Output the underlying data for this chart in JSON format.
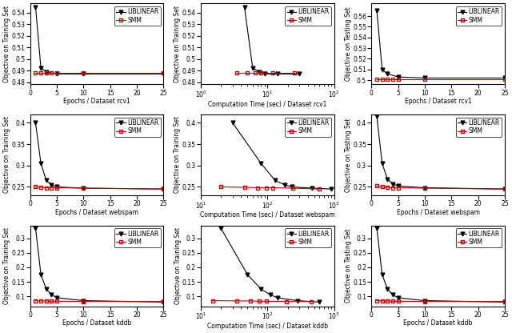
{
  "datasets": [
    "rcv1",
    "webspam",
    "kddb"
  ],
  "rcv1": {
    "liblinear_epochs": [
      1,
      2,
      3,
      5,
      10,
      25
    ],
    "liblinear_train_vals": [
      0.545,
      0.492,
      0.489,
      0.487,
      0.487,
      0.487
    ],
    "smm_epochs": [
      1,
      2,
      3,
      4,
      5,
      10,
      25
    ],
    "smm_train_vals": [
      0.488,
      0.488,
      0.488,
      0.488,
      0.488,
      0.488,
      0.488
    ],
    "liblinear_times": [
      4.5,
      6.0,
      7.5,
      9.0,
      14.0,
      30.0
    ],
    "liblinear_time_vals": [
      0.545,
      0.492,
      0.489,
      0.487,
      0.487,
      0.487
    ],
    "smm_times": [
      3.5,
      5.0,
      6.5,
      8.0,
      12.0,
      25.0
    ],
    "smm_time_vals": [
      0.488,
      0.488,
      0.488,
      0.488,
      0.488,
      0.488
    ],
    "liblinear_test_epochs": [
      1,
      2,
      3,
      5,
      10,
      25
    ],
    "liblinear_test_vals": [
      0.565,
      0.51,
      0.506,
      0.503,
      0.502,
      0.502
    ],
    "smm_test_epochs": [
      1,
      2,
      3,
      4,
      5,
      10,
      25
    ],
    "smm_test_vals": [
      0.501,
      0.501,
      0.501,
      0.501,
      0.501,
      0.501,
      0.501
    ],
    "train_ylim": [
      0.478,
      0.548
    ],
    "train_yticks": [
      0.48,
      0.49,
      0.5,
      0.51,
      0.52,
      0.53,
      0.54
    ],
    "test_ylim": [
      0.496,
      0.572
    ],
    "test_yticks": [
      0.5,
      0.51,
      0.52,
      0.53,
      0.54,
      0.55,
      0.56
    ],
    "time_xlim": [
      1.0,
      100.0
    ],
    "time_xticks": [
      1,
      10,
      100
    ],
    "epochs_xlim": [
      0,
      25
    ],
    "epochs_xticks": [
      0,
      5,
      10,
      15,
      20,
      25
    ]
  },
  "webspam": {
    "liblinear_epochs": [
      1,
      2,
      3,
      4,
      5,
      10,
      25
    ],
    "liblinear_train_vals": [
      0.4,
      0.305,
      0.265,
      0.255,
      0.25,
      0.247,
      0.245
    ],
    "smm_epochs": [
      1,
      2,
      3,
      4,
      5,
      10,
      25
    ],
    "smm_train_vals": [
      0.25,
      0.249,
      0.248,
      0.248,
      0.248,
      0.247,
      0.245
    ],
    "liblinear_times": [
      30.0,
      80.0,
      130.0,
      180.0,
      230.0,
      460.0,
      900.0
    ],
    "liblinear_time_vals": [
      0.4,
      0.305,
      0.265,
      0.255,
      0.25,
      0.247,
      0.245
    ],
    "smm_times": [
      20.0,
      45.0,
      70.0,
      95.0,
      120.0,
      240.0,
      600.0
    ],
    "smm_time_vals": [
      0.25,
      0.249,
      0.248,
      0.248,
      0.248,
      0.247,
      0.245
    ],
    "liblinear_test_epochs": [
      1,
      2,
      3,
      4,
      5,
      10,
      25
    ],
    "liblinear_test_vals": [
      0.415,
      0.305,
      0.268,
      0.257,
      0.252,
      0.248,
      0.245
    ],
    "smm_test_epochs": [
      1,
      2,
      3,
      4,
      5,
      10,
      25
    ],
    "smm_test_vals": [
      0.252,
      0.25,
      0.249,
      0.248,
      0.248,
      0.247,
      0.245
    ],
    "train_ylim": [
      0.23,
      0.42
    ],
    "train_yticks": [
      0.25,
      0.3,
      0.35,
      0.4
    ],
    "test_ylim": [
      0.23,
      0.42
    ],
    "test_yticks": [
      0.25,
      0.3,
      0.35,
      0.4
    ],
    "time_xlim": [
      10.0,
      1000.0
    ],
    "time_xticks": [
      10,
      100,
      1000
    ],
    "epochs_xlim": [
      0,
      25
    ],
    "epochs_xticks": [
      0,
      5,
      10,
      15,
      20,
      25
    ]
  },
  "kddb": {
    "liblinear_epochs": [
      1,
      2,
      3,
      4,
      5,
      10,
      25
    ],
    "liblinear_train_vals": [
      0.335,
      0.175,
      0.125,
      0.105,
      0.095,
      0.085,
      0.08
    ],
    "smm_epochs": [
      1,
      2,
      3,
      4,
      5,
      10,
      25
    ],
    "smm_train_vals": [
      0.085,
      0.084,
      0.084,
      0.083,
      0.083,
      0.082,
      0.082
    ],
    "liblinear_times": [
      20.0,
      50.0,
      80.0,
      110.0,
      140.0,
      280.0,
      600.0
    ],
    "liblinear_time_vals": [
      0.335,
      0.175,
      0.125,
      0.105,
      0.095,
      0.085,
      0.08
    ],
    "smm_times": [
      15.0,
      35.0,
      55.0,
      75.0,
      95.0,
      190.0,
      450.0
    ],
    "smm_time_vals": [
      0.085,
      0.084,
      0.084,
      0.083,
      0.083,
      0.082,
      0.082
    ],
    "liblinear_test_epochs": [
      1,
      2,
      3,
      4,
      5,
      10,
      25
    ],
    "liblinear_test_vals": [
      0.335,
      0.175,
      0.125,
      0.105,
      0.095,
      0.085,
      0.08
    ],
    "smm_test_epochs": [
      1,
      2,
      3,
      4,
      5,
      10,
      25
    ],
    "smm_test_vals": [
      0.085,
      0.084,
      0.084,
      0.083,
      0.083,
      0.082,
      0.082
    ],
    "train_ylim": [
      0.065,
      0.345
    ],
    "train_yticks": [
      0.1,
      0.15,
      0.2,
      0.25,
      0.3
    ],
    "test_ylim": [
      0.065,
      0.345
    ],
    "test_yticks": [
      0.1,
      0.15,
      0.2,
      0.25,
      0.3
    ],
    "time_xlim": [
      10.0,
      1000.0
    ],
    "time_xticks": [
      10,
      100,
      1000
    ],
    "epochs_xlim": [
      0,
      25
    ],
    "epochs_xticks": [
      0,
      5,
      10,
      15,
      20,
      25
    ]
  },
  "liblinear_color": "#000000",
  "smm_color": "#cc0000",
  "liblinear_marker": "v",
  "smm_marker": "s",
  "linewidth": 0.8,
  "markersize": 3.5,
  "legend_fontsize": 5.5,
  "tick_fontsize": 5.5,
  "label_fontsize": 5.5,
  "figsize": [
    6.4,
    4.16
  ],
  "dpi": 100
}
